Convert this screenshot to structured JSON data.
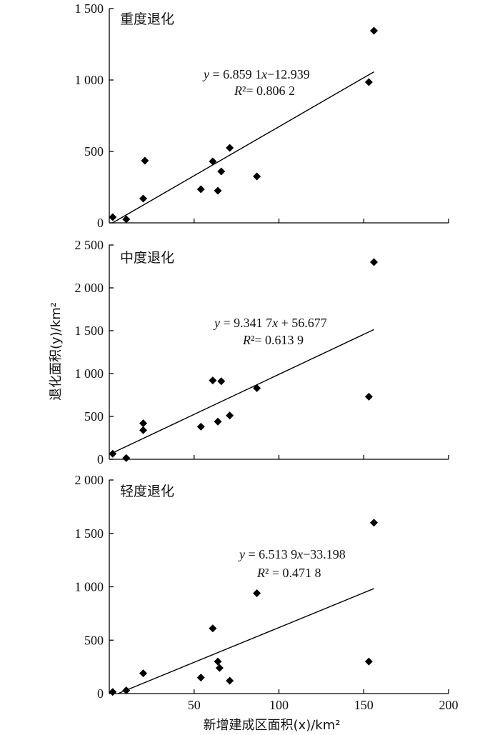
{
  "chart_data": {
    "type": "scatter",
    "xlabel": "新增建成区面积(x)/km²",
    "ylabel": "退化面积(y)/km²",
    "x_ticks": [
      "50",
      "100",
      "150",
      "200"
    ],
    "xlim": [
      0,
      200
    ],
    "panels": [
      {
        "title": "重度退化",
        "equation": "y = 6.859 1x−12.939",
        "r2": "R²= 0.806 2",
        "ylim": [
          0,
          1500
        ],
        "y_ticks": [
          "1 500",
          "1 000",
          "500",
          "0"
        ],
        "y_tick_values": [
          1500,
          1000,
          500,
          0
        ],
        "trend": {
          "slope": 6.8591,
          "intercept": -12.939,
          "x_from": 2,
          "x_to": 156
        },
        "points": [
          {
            "x": 2,
            "y": 40
          },
          {
            "x": 10,
            "y": 25
          },
          {
            "x": 20,
            "y": 170
          },
          {
            "x": 21,
            "y": 435
          },
          {
            "x": 54,
            "y": 235
          },
          {
            "x": 61,
            "y": 430
          },
          {
            "x": 64,
            "y": 225
          },
          {
            "x": 66,
            "y": 360
          },
          {
            "x": 71,
            "y": 525
          },
          {
            "x": 87,
            "y": 325
          },
          {
            "x": 153,
            "y": 985
          },
          {
            "x": 156,
            "y": 1345
          }
        ]
      },
      {
        "title": "中度退化",
        "equation": "y = 9.341 7x + 56.677",
        "r2": "R²= 0.613 9",
        "ylim": [
          0,
          2500
        ],
        "y_ticks": [
          "2 500",
          "2 000",
          "1 500",
          "1 000",
          "500",
          "0"
        ],
        "y_tick_values": [
          2500,
          2000,
          1500,
          1000,
          500,
          0
        ],
        "trend": {
          "slope": 9.3417,
          "intercept": 56.677,
          "x_from": 2,
          "x_to": 156
        },
        "points": [
          {
            "x": 2,
            "y": 65
          },
          {
            "x": 10,
            "y": 15
          },
          {
            "x": 20,
            "y": 420
          },
          {
            "x": 20,
            "y": 340
          },
          {
            "x": 54,
            "y": 380
          },
          {
            "x": 61,
            "y": 920
          },
          {
            "x": 64,
            "y": 440
          },
          {
            "x": 66,
            "y": 910
          },
          {
            "x": 71,
            "y": 510
          },
          {
            "x": 87,
            "y": 830
          },
          {
            "x": 153,
            "y": 730
          },
          {
            "x": 156,
            "y": 2300
          }
        ]
      },
      {
        "title": "轻度退化",
        "equation": "y = 6.513 9x−33.198",
        "r2": "R² = 0.471 8",
        "ylim": [
          0,
          2000
        ],
        "y_ticks": [
          "2 000",
          "1 500",
          "1 000",
          "500",
          "0"
        ],
        "y_tick_values": [
          2000,
          1500,
          1000,
          500,
          0
        ],
        "trend": {
          "slope": 6.5139,
          "intercept": -33.198,
          "x_from": 5,
          "x_to": 156
        },
        "points": [
          {
            "x": 2,
            "y": 15
          },
          {
            "x": 10,
            "y": 30
          },
          {
            "x": 20,
            "y": 190
          },
          {
            "x": 54,
            "y": 150
          },
          {
            "x": 61,
            "y": 610
          },
          {
            "x": 64,
            "y": 300
          },
          {
            "x": 65,
            "y": 240
          },
          {
            "x": 71,
            "y": 120
          },
          {
            "x": 87,
            "y": 940
          },
          {
            "x": 153,
            "y": 300
          },
          {
            "x": 156,
            "y": 1600
          }
        ]
      }
    ]
  }
}
